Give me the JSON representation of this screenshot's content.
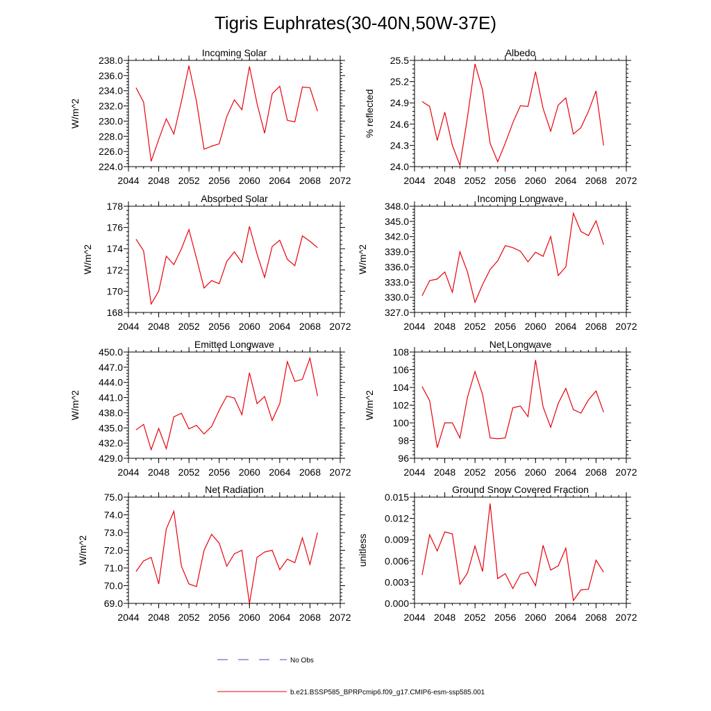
{
  "title": "Tigris Euphrates(30-40N,50W-37E)",
  "legend": {
    "obs_label": "No Obs",
    "obs_color": "#3b4cc0",
    "model_label": "b.e21.BSSP585_BPRPcmip6.f09_g17.CMIP6-esm-ssp585.001",
    "model_color": "#e8000b"
  },
  "chart_data": [
    {
      "type": "line",
      "title": "Incoming Solar",
      "ylabel": "W/m^2",
      "xlim": [
        2044,
        2072
      ],
      "ylim": [
        224,
        238
      ],
      "xticks": [
        2044,
        2048,
        2052,
        2056,
        2060,
        2064,
        2068,
        2072
      ],
      "xtick_labels": [
        "2044",
        "2048",
        "2052",
        "2056",
        "2060",
        "2064",
        "2068",
        "2072"
      ],
      "yticks": [
        224,
        226,
        228,
        230,
        232,
        234,
        236,
        238
      ],
      "ytick_labels": [
        "224.0",
        "226.0",
        "228.0",
        "230.0",
        "232.0",
        "234.0",
        "236.0",
        "238.0"
      ],
      "x": [
        2045,
        2046,
        2047,
        2048,
        2049,
        2050,
        2051,
        2052,
        2053,
        2054,
        2055,
        2056,
        2057,
        2058,
        2059,
        2060,
        2061,
        2062,
        2063,
        2064,
        2065,
        2066,
        2067,
        2068,
        2069
      ],
      "series": [
        {
          "values": [
            234.4,
            232.5,
            224.7,
            227.6,
            230.3,
            228.3,
            232.6,
            237.3,
            232.6,
            226.3,
            226.7,
            227.0,
            230.6,
            232.8,
            231.5,
            237.2,
            232.3,
            228.4,
            233.6,
            234.6,
            230.1,
            229.9,
            234.5,
            234.4,
            231.3
          ]
        }
      ]
    },
    {
      "type": "line",
      "title": "Albedo",
      "ylabel": "% reflected",
      "xlim": [
        2044,
        2072
      ],
      "ylim": [
        24.0,
        25.5
      ],
      "xticks": [
        2044,
        2048,
        2052,
        2056,
        2060,
        2064,
        2068,
        2072
      ],
      "xtick_labels": [
        "2044",
        "2048",
        "2052",
        "2056",
        "2060",
        "2064",
        "2068",
        "2072"
      ],
      "yticks": [
        24.0,
        24.3,
        24.6,
        24.9,
        25.2,
        25.5
      ],
      "ytick_labels": [
        "24.0",
        "24.3",
        "24.6",
        "24.9",
        "25.2",
        "25.5"
      ],
      "x": [
        2045,
        2046,
        2047,
        2048,
        2049,
        2050,
        2051,
        2052,
        2053,
        2054,
        2055,
        2056,
        2057,
        2058,
        2059,
        2060,
        2061,
        2062,
        2063,
        2064,
        2065,
        2066,
        2067,
        2068,
        2069
      ],
      "series": [
        {
          "values": [
            24.92,
            24.85,
            24.37,
            24.77,
            24.3,
            24.02,
            24.7,
            25.45,
            25.08,
            24.33,
            24.07,
            24.33,
            24.62,
            24.86,
            24.85,
            25.34,
            24.82,
            24.5,
            24.87,
            24.97,
            24.46,
            24.55,
            24.78,
            25.07,
            24.3
          ]
        }
      ]
    },
    {
      "type": "line",
      "title": "Absorbed Solar",
      "ylabel": "W/m^2",
      "xlim": [
        2044,
        2072
      ],
      "ylim": [
        168,
        178
      ],
      "xticks": [
        2044,
        2048,
        2052,
        2056,
        2060,
        2064,
        2068,
        2072
      ],
      "xtick_labels": [
        "2044",
        "2048",
        "2052",
        "2056",
        "2060",
        "2064",
        "2068",
        "2072"
      ],
      "yticks": [
        168,
        170,
        172,
        174,
        176,
        178
      ],
      "ytick_labels": [
        "168",
        "170",
        "172",
        "174",
        "176",
        "178"
      ],
      "x": [
        2045,
        2046,
        2047,
        2048,
        2049,
        2050,
        2051,
        2052,
        2053,
        2054,
        2055,
        2056,
        2057,
        2058,
        2059,
        2060,
        2061,
        2062,
        2063,
        2064,
        2065,
        2066,
        2067,
        2068,
        2069
      ],
      "series": [
        {
          "values": [
            174.9,
            173.8,
            168.8,
            170.0,
            173.3,
            172.5,
            174.0,
            175.8,
            173.1,
            170.3,
            171.0,
            170.7,
            172.8,
            173.7,
            172.7,
            176.1,
            173.5,
            171.3,
            174.2,
            174.8,
            173.0,
            172.4,
            175.2,
            174.7,
            174.1
          ]
        }
      ]
    },
    {
      "type": "line",
      "title": "Incoming Longwave",
      "ylabel": "W/m^2",
      "xlim": [
        2044,
        2072
      ],
      "ylim": [
        327,
        348
      ],
      "xticks": [
        2044,
        2048,
        2052,
        2056,
        2060,
        2064,
        2068,
        2072
      ],
      "xtick_labels": [
        "2044",
        "2048",
        "2052",
        "2056",
        "2060",
        "2064",
        "2068",
        "2072"
      ],
      "yticks": [
        327,
        330,
        333,
        336,
        339,
        342,
        345,
        348
      ],
      "ytick_labels": [
        "327.0",
        "330.0",
        "333.0",
        "336.0",
        "339.0",
        "342.0",
        "345.0",
        "348.0"
      ],
      "x": [
        2045,
        2046,
        2047,
        2048,
        2049,
        2050,
        2051,
        2052,
        2053,
        2054,
        2055,
        2056,
        2057,
        2058,
        2059,
        2060,
        2061,
        2062,
        2063,
        2064,
        2065,
        2066,
        2067,
        2068,
        2069
      ],
      "series": [
        {
          "values": [
            330.3,
            333.3,
            333.6,
            335.0,
            331.0,
            339.0,
            335.0,
            329.0,
            332.5,
            335.5,
            337.2,
            340.2,
            339.8,
            339.1,
            337.0,
            338.9,
            338.1,
            342.0,
            334.3,
            336.0,
            346.6,
            343.0,
            342.2,
            345.1,
            340.4
          ]
        }
      ]
    },
    {
      "type": "line",
      "title": "Emitted Longwave",
      "ylabel": "W/m^2",
      "xlim": [
        2044,
        2072
      ],
      "ylim": [
        429,
        450
      ],
      "xticks": [
        2044,
        2048,
        2052,
        2056,
        2060,
        2064,
        2068,
        2072
      ],
      "xtick_labels": [
        "2044",
        "2048",
        "2052",
        "2056",
        "2060",
        "2064",
        "2068",
        "2072"
      ],
      "yticks": [
        429,
        432,
        435,
        438,
        441,
        444,
        447,
        450
      ],
      "ytick_labels": [
        "429.0",
        "432.0",
        "435.0",
        "438.0",
        "441.0",
        "444.0",
        "447.0",
        "450.0"
      ],
      "x": [
        2045,
        2046,
        2047,
        2048,
        2049,
        2050,
        2051,
        2052,
        2053,
        2054,
        2055,
        2056,
        2057,
        2058,
        2059,
        2060,
        2061,
        2062,
        2063,
        2064,
        2065,
        2066,
        2067,
        2068,
        2069
      ],
      "series": [
        {
          "values": [
            434.6,
            435.7,
            430.7,
            434.9,
            430.9,
            437.2,
            437.9,
            434.8,
            435.5,
            433.8,
            435.3,
            438.5,
            441.3,
            440.9,
            437.6,
            445.9,
            439.8,
            441.2,
            436.5,
            439.8,
            448.1,
            444.2,
            444.6,
            448.8,
            441.3
          ]
        }
      ]
    },
    {
      "type": "line",
      "title": "Net Longwave",
      "ylabel": "W/m^2",
      "xlim": [
        2044,
        2072
      ],
      "ylim": [
        96,
        108
      ],
      "xticks": [
        2044,
        2048,
        2052,
        2056,
        2060,
        2064,
        2068,
        2072
      ],
      "xtick_labels": [
        "2044",
        "2048",
        "2052",
        "2056",
        "2060",
        "2064",
        "2068",
        "2072"
      ],
      "yticks": [
        96,
        98,
        100,
        102,
        104,
        106,
        108
      ],
      "ytick_labels": [
        "96",
        "98",
        "100",
        "102",
        "104",
        "106",
        "108"
      ],
      "x": [
        2045,
        2046,
        2047,
        2048,
        2049,
        2050,
        2051,
        2052,
        2053,
        2054,
        2055,
        2056,
        2057,
        2058,
        2059,
        2060,
        2061,
        2062,
        2063,
        2064,
        2065,
        2066,
        2067,
        2068,
        2069
      ],
      "series": [
        {
          "values": [
            104.1,
            102.5,
            97.2,
            100.0,
            100.0,
            98.3,
            102.9,
            105.8,
            103.2,
            98.3,
            98.2,
            98.3,
            101.7,
            101.9,
            100.7,
            107.1,
            101.8,
            99.5,
            102.2,
            103.9,
            101.5,
            101.1,
            102.6,
            103.6,
            101.2
          ]
        }
      ]
    },
    {
      "type": "line",
      "title": "Net Radiation",
      "ylabel": "W/m^2",
      "xlim": [
        2044,
        2072
      ],
      "ylim": [
        69,
        75
      ],
      "xticks": [
        2044,
        2048,
        2052,
        2056,
        2060,
        2064,
        2068,
        2072
      ],
      "xtick_labels": [
        "2044",
        "2048",
        "2052",
        "2056",
        "2060",
        "2064",
        "2068",
        "2072"
      ],
      "yticks": [
        69,
        70,
        71,
        72,
        73,
        74,
        75
      ],
      "ytick_labels": [
        "69.0",
        "70.0",
        "71.0",
        "72.0",
        "73.0",
        "74.0",
        "75.0"
      ],
      "x": [
        2045,
        2046,
        2047,
        2048,
        2049,
        2050,
        2051,
        2052,
        2053,
        2054,
        2055,
        2056,
        2057,
        2058,
        2059,
        2060,
        2061,
        2062,
        2063,
        2064,
        2065,
        2066,
        2067,
        2068,
        2069
      ],
      "series": [
        {
          "values": [
            70.8,
            71.4,
            71.6,
            70.1,
            73.2,
            74.2,
            71.1,
            70.1,
            69.95,
            72.0,
            72.9,
            72.4,
            71.1,
            71.8,
            72.0,
            69.0,
            71.6,
            71.9,
            72.0,
            70.9,
            71.5,
            71.3,
            72.7,
            71.2,
            73.0
          ]
        }
      ]
    },
    {
      "type": "line",
      "title": "Ground Snow Covered Fraction",
      "ylabel": "unitless",
      "xlim": [
        2044,
        2072
      ],
      "ylim": [
        0,
        0.015
      ],
      "xticks": [
        2044,
        2048,
        2052,
        2056,
        2060,
        2064,
        2068,
        2072
      ],
      "xtick_labels": [
        "2044",
        "2048",
        "2052",
        "2056",
        "2060",
        "2064",
        "2068",
        "2072"
      ],
      "yticks": [
        0,
        0.003,
        0.006,
        0.009,
        0.012,
        0.015
      ],
      "ytick_labels": [
        "0.000",
        "0.003",
        "0.006",
        "0.009",
        "0.012",
        "0.015"
      ],
      "x": [
        2045,
        2046,
        2047,
        2048,
        2049,
        2050,
        2051,
        2052,
        2053,
        2054,
        2055,
        2056,
        2057,
        2058,
        2059,
        2060,
        2061,
        2062,
        2063,
        2064,
        2065,
        2066,
        2067,
        2068,
        2069
      ],
      "series": [
        {
          "values": [
            0.004,
            0.0097,
            0.0074,
            0.0101,
            0.0098,
            0.0027,
            0.0043,
            0.0081,
            0.0045,
            0.0141,
            0.0035,
            0.0042,
            0.0021,
            0.0041,
            0.0044,
            0.0025,
            0.0082,
            0.0047,
            0.0053,
            0.0078,
            0.0004,
            0.0019,
            0.002,
            0.0061,
            0.0044
          ]
        }
      ]
    }
  ]
}
